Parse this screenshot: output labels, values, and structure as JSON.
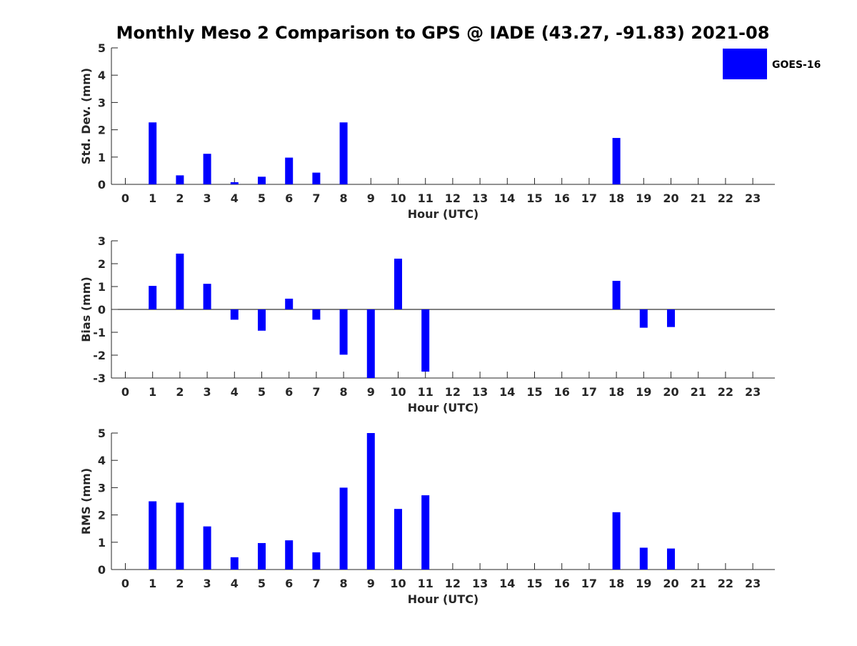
{
  "title": "Monthly Meso 2 Comparison to GPS @ IADE (43.27, -91.83) 2021-08",
  "legend": {
    "label": "GOES-16",
    "color": "#0000ff"
  },
  "chart_data": [
    {
      "type": "bar",
      "ylabel": "Std. Dev. (mm)",
      "xlabel": "Hour (UTC)",
      "ylim": [
        0,
        5
      ],
      "yticks": [
        0,
        1,
        2,
        3,
        4,
        5
      ],
      "categories": [
        0,
        1,
        2,
        3,
        4,
        5,
        6,
        7,
        8,
        9,
        10,
        11,
        12,
        13,
        14,
        15,
        16,
        17,
        18,
        19,
        20,
        21,
        22,
        23
      ],
      "series": [
        {
          "name": "GOES-16",
          "values": [
            null,
            2.27,
            0.33,
            1.12,
            0.08,
            0.28,
            0.98,
            0.43,
            2.27,
            null,
            null,
            null,
            null,
            null,
            null,
            null,
            null,
            null,
            1.7,
            null,
            null,
            null,
            null,
            null
          ]
        }
      ]
    },
    {
      "type": "bar",
      "ylabel": "Bias (mm)",
      "xlabel": "Hour (UTC)",
      "ylim": [
        -3,
        3
      ],
      "yticks": [
        -3,
        -2,
        -1,
        0,
        1,
        2,
        3
      ],
      "categories": [
        0,
        1,
        2,
        3,
        4,
        5,
        6,
        7,
        8,
        9,
        10,
        11,
        12,
        13,
        14,
        15,
        16,
        17,
        18,
        19,
        20,
        21,
        22,
        23
      ],
      "series": [
        {
          "name": "GOES-16",
          "values": [
            null,
            1.03,
            2.44,
            1.12,
            -0.45,
            -0.93,
            0.47,
            -0.45,
            -1.98,
            -3.0,
            2.22,
            -2.72,
            null,
            null,
            null,
            null,
            null,
            null,
            1.25,
            -0.8,
            -0.77,
            null,
            null,
            null
          ]
        }
      ]
    },
    {
      "type": "bar",
      "ylabel": "RMS (mm)",
      "xlabel": "Hour (UTC)",
      "ylim": [
        0,
        5
      ],
      "yticks": [
        0,
        1,
        2,
        3,
        4,
        5
      ],
      "categories": [
        0,
        1,
        2,
        3,
        4,
        5,
        6,
        7,
        8,
        9,
        10,
        11,
        12,
        13,
        14,
        15,
        16,
        17,
        18,
        19,
        20,
        21,
        22,
        23
      ],
      "series": [
        {
          "name": "GOES-16",
          "values": [
            null,
            2.5,
            2.45,
            1.58,
            0.45,
            0.97,
            1.07,
            0.63,
            3.0,
            5.0,
            2.22,
            2.72,
            null,
            null,
            null,
            null,
            null,
            null,
            2.1,
            0.8,
            0.77,
            null,
            null,
            null
          ]
        }
      ]
    }
  ]
}
